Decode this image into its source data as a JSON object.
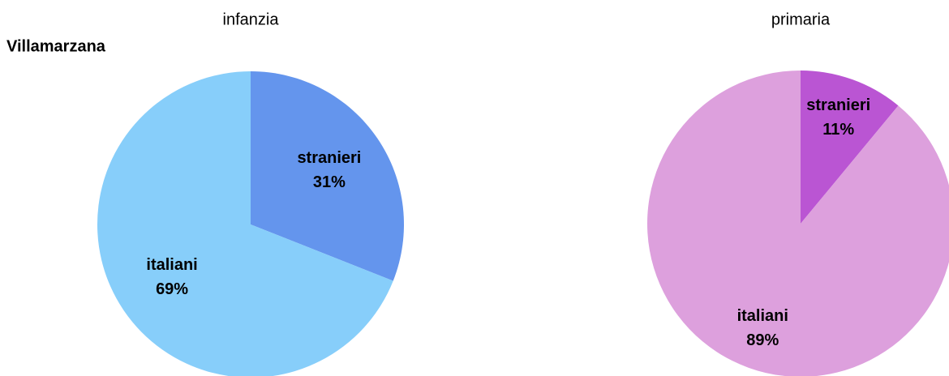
{
  "heading": "Villamarzana",
  "chart_data": [
    {
      "type": "pie",
      "title": "infanzia",
      "categories": [
        "stranieri",
        "italiani"
      ],
      "values": [
        31,
        69
      ],
      "value_labels": [
        "31%",
        "69%"
      ],
      "colors": [
        "#6495ed",
        "#87cefa"
      ]
    },
    {
      "type": "pie",
      "title": "primaria",
      "categories": [
        "stranieri",
        "italiani"
      ],
      "values": [
        11,
        89
      ],
      "value_labels": [
        "11%",
        "89%"
      ],
      "colors": [
        "#ba55d3",
        "#dda0dd"
      ]
    }
  ]
}
